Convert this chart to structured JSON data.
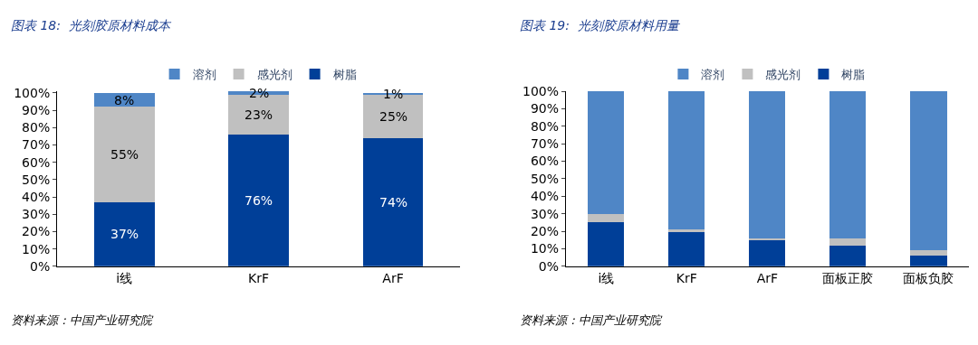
{
  "chart_data": [
    {
      "type": "bar",
      "title": "图表 18:  光刻胶原材料成本",
      "stacked": true,
      "legend": "top",
      "categories": [
        "i线",
        "KrF",
        "ArF"
      ],
      "series": [
        {
          "name": "树脂",
          "color": "#003f98",
          "values": [
            37,
            76,
            74
          ],
          "value_labels": [
            "37%",
            "76%",
            "74%"
          ]
        },
        {
          "name": "感光剂",
          "color": "#c0c0c0",
          "values": [
            55,
            23,
            25
          ],
          "value_labels": [
            "55%",
            "23%",
            "25%"
          ]
        },
        {
          "name": "溶剂",
          "color": "#4f86c6",
          "values": [
            8,
            2,
            1
          ],
          "value_labels": [
            "8%",
            "2%",
            "1%"
          ]
        }
      ],
      "ylim": [
        0,
        101
      ],
      "yticks": [
        {
          "value": 0,
          "label": "0%"
        },
        {
          "value": 10,
          "label": "10%"
        },
        {
          "value": 20,
          "label": "20%"
        },
        {
          "value": 30,
          "label": "30%"
        },
        {
          "value": 40,
          "label": "40%"
        },
        {
          "value": 50,
          "label": "50%"
        },
        {
          "value": 60,
          "label": "60%"
        },
        {
          "value": 70,
          "label": "70%"
        },
        {
          "value": 80,
          "label": "80%"
        },
        {
          "value": 90,
          "label": "90%"
        },
        {
          "value": 100,
          "label": "100%"
        }
      ],
      "annotations": [
        "资料来源：中国产业研究院"
      ]
    },
    {
      "type": "bar",
      "title": "图表 19:  光刻胶原材料用量",
      "stacked": true,
      "legend": "top",
      "categories": [
        "i线",
        "KrF",
        "ArF",
        "面板正胶",
        "面板负胶"
      ],
      "series": [
        {
          "name": "树脂",
          "color": "#003f98",
          "values": [
            25,
            20,
            15,
            12,
            6
          ]
        },
        {
          "name": "感光剂",
          "color": "#c0c0c0",
          "values": [
            5,
            1,
            1,
            4,
            3
          ]
        },
        {
          "name": "溶剂",
          "color": "#4f86c6",
          "values": [
            70,
            79,
            84,
            84,
            91
          ]
        }
      ],
      "ylim": [
        0,
        100
      ],
      "yticks": [
        {
          "value": 0,
          "label": "0%"
        },
        {
          "value": 10,
          "label": "10%"
        },
        {
          "value": 20,
          "label": "20%"
        },
        {
          "value": 30,
          "label": "30%"
        },
        {
          "value": 40,
          "label": "40%"
        },
        {
          "value": 50,
          "label": "50%"
        },
        {
          "value": 60,
          "label": "60%"
        },
        {
          "value": 70,
          "label": "70%"
        },
        {
          "value": 80,
          "label": "80%"
        },
        {
          "value": 90,
          "label": "90%"
        },
        {
          "value": 100,
          "label": "100%"
        }
      ],
      "annotations": [
        "资料来源：中国产业研究院"
      ]
    }
  ]
}
